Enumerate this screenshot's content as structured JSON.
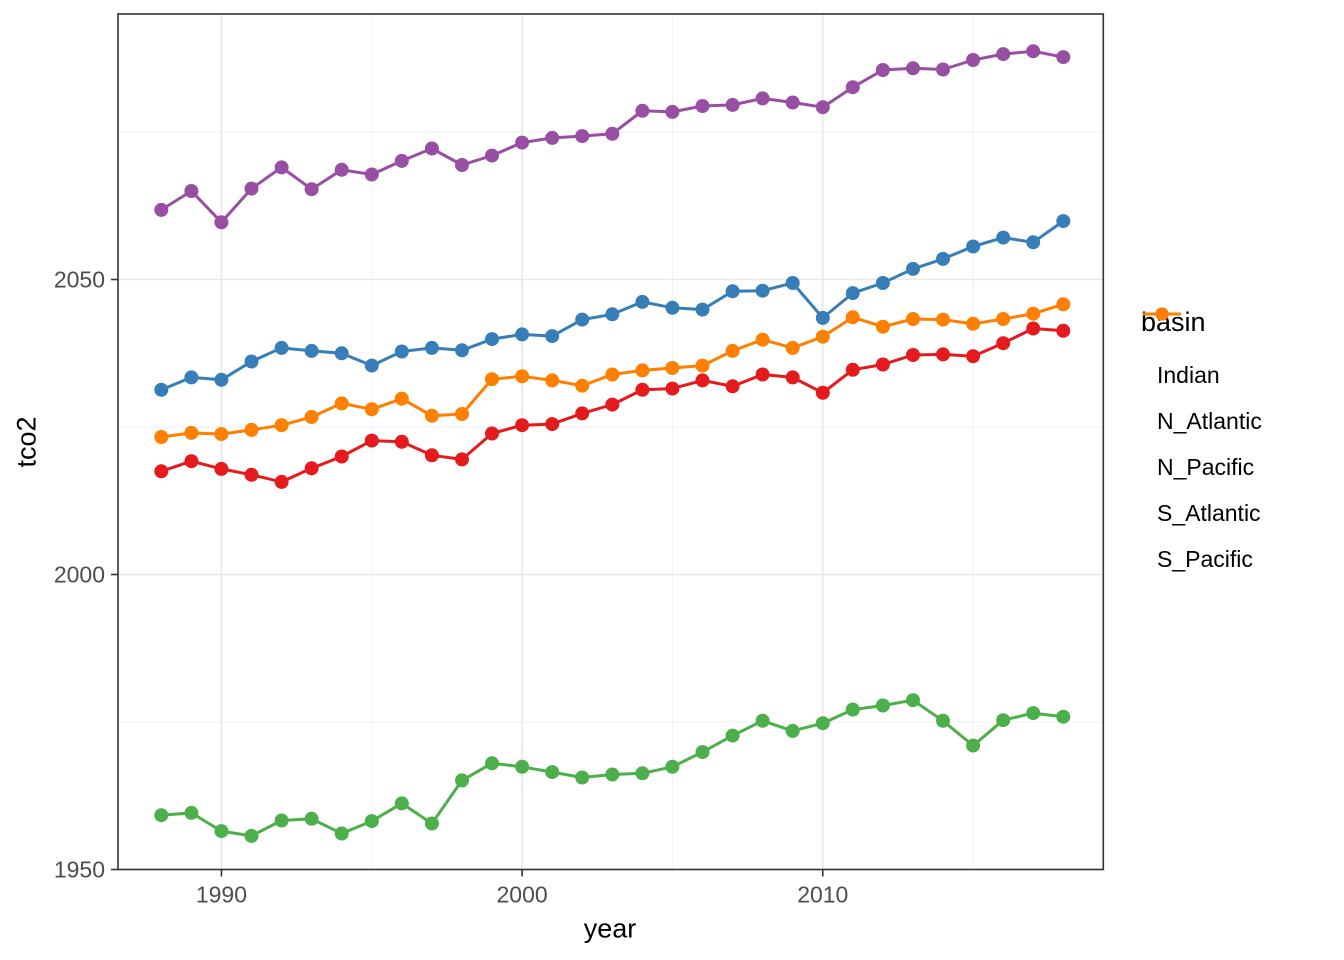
{
  "figure": {
    "background": "#FFFFFF",
    "panel": {
      "border_color": "#333333",
      "grid_major_color": "#E8E8E8",
      "grid_minor_color": "#F2F2F2",
      "tick_color": "#333333",
      "tick_label_color": "#4D4D4D"
    }
  },
  "legend": {
    "title": "basin",
    "position": "right",
    "items": [
      {
        "label": "Indian",
        "color": "#E41A1C"
      },
      {
        "label": "N_Atlantic",
        "color": "#377EB8"
      },
      {
        "label": "N_Pacific",
        "color": "#4DAF4A"
      },
      {
        "label": "S_Atlantic",
        "color": "#984EA3"
      },
      {
        "label": "S_Pacific",
        "color": "#FF7F00"
      }
    ]
  },
  "chart_data": {
    "type": "line",
    "title": "",
    "xlabel": "year",
    "ylabel": "tco2",
    "grid": true,
    "legend_position": "right",
    "xlim": [
      1986.56,
      2019.33
    ],
    "ylim": [
      1950.0,
      2095.0
    ],
    "x_ticks": [
      1990,
      2000,
      2010
    ],
    "x_tick_labels": [
      "1990",
      "2000",
      "2010"
    ],
    "x_minor": [
      1995,
      2005,
      2015
    ],
    "y_ticks": [
      1950,
      2000,
      2050
    ],
    "y_tick_labels": [
      "1950",
      "2000",
      "2050"
    ],
    "y_minor": [
      1975,
      2025,
      2075
    ],
    "x": [
      1988,
      1989,
      1990,
      1991,
      1992,
      1993,
      1994,
      1995,
      1996,
      1997,
      1998,
      1999,
      2000,
      2001,
      2002,
      2003,
      2004,
      2005,
      2006,
      2007,
      2008,
      2009,
      2010,
      2011,
      2012,
      2013,
      2014,
      2015,
      2016,
      2017,
      2018
    ],
    "series": [
      {
        "name": "Indian",
        "color": "#E41A1C",
        "values": [
          2017.5,
          2019.2,
          2017.9,
          2016.9,
          2015.7,
          2018.0,
          2020.0,
          2022.7,
          2022.5,
          2020.2,
          2019.5,
          2023.9,
          2025.3,
          2025.5,
          2027.3,
          2028.8,
          2031.3,
          2031.5,
          2032.9,
          2031.9,
          2033.9,
          2033.4,
          2030.8,
          2034.7,
          2035.6,
          2037.2,
          2037.3,
          2037.0,
          2039.2,
          2041.7,
          2041.3
        ]
      },
      {
        "name": "N_Atlantic",
        "color": "#377EB8",
        "values": [
          2031.3,
          2033.4,
          2033.0,
          2036.1,
          2038.4,
          2037.9,
          2037.5,
          2035.4,
          2037.8,
          2038.4,
          2038.0,
          2039.9,
          2040.7,
          2040.4,
          2043.2,
          2044.1,
          2046.2,
          2045.2,
          2044.9,
          2048.0,
          2048.1,
          2049.4,
          2043.5,
          2047.7,
          2049.4,
          2051.8,
          2053.5,
          2055.6,
          2057.1,
          2056.3,
          2059.9
        ]
      },
      {
        "name": "N_Pacific",
        "color": "#4DAF4A",
        "values": [
          1959.2,
          1959.6,
          1956.5,
          1955.7,
          1958.3,
          1958.6,
          1956.1,
          1958.2,
          1961.2,
          1957.8,
          1965.1,
          1968.0,
          1967.4,
          1966.5,
          1965.6,
          1966.1,
          1966.3,
          1967.4,
          1969.9,
          1972.7,
          1975.2,
          1973.5,
          1974.8,
          1977.1,
          1977.8,
          1978.7,
          1975.2,
          1971.0,
          1975.3,
          1976.5,
          1975.9
        ]
      },
      {
        "name": "S_Atlantic",
        "color": "#984EA3",
        "values": [
          2061.8,
          2065.0,
          2059.7,
          2065.4,
          2069.0,
          2065.3,
          2068.6,
          2067.8,
          2070.1,
          2072.2,
          2069.4,
          2071.0,
          2073.2,
          2074.0,
          2074.3,
          2074.7,
          2078.6,
          2078.4,
          2079.4,
          2079.6,
          2080.7,
          2080.0,
          2079.2,
          2082.6,
          2085.5,
          2085.8,
          2085.6,
          2087.2,
          2088.2,
          2088.7,
          2087.7
        ]
      },
      {
        "name": "S_Pacific",
        "color": "#FF7F00",
        "values": [
          2023.3,
          2024.0,
          2023.8,
          2024.5,
          2025.3,
          2026.7,
          2029.0,
          2028.0,
          2029.8,
          2026.9,
          2027.2,
          2033.1,
          2033.6,
          2032.9,
          2032.0,
          2033.9,
          2034.6,
          2035.0,
          2035.4,
          2037.9,
          2039.8,
          2038.4,
          2040.3,
          2043.6,
          2042.0,
          2043.3,
          2043.2,
          2042.5,
          2043.3,
          2044.2,
          2045.8
        ]
      }
    ]
  }
}
